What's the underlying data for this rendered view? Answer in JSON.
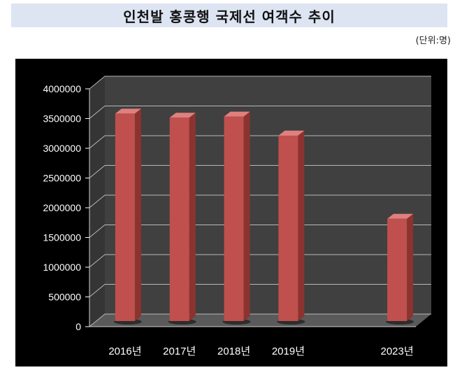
{
  "title": "인천발 홍콩행 국제선 여객수 추이",
  "unit_note": "(단위:명)",
  "colors": {
    "background": "#000000",
    "plot_back_wall": "#404040",
    "plot_floor": "#5a5a5a",
    "gridline": "#b8b8b8",
    "bar_front": "#c0504d",
    "bar_side": "#8c3330",
    "bar_top": "#e0807d",
    "axis_text": "#ffffff",
    "title_bar": "#dde4f2"
  },
  "chart_data": {
    "type": "bar",
    "title": "인천발 홍콩행 국제선 여객수 추이",
    "categories": [
      "2016년",
      "2017년",
      "2018년",
      "2019년",
      "",
      "2023년"
    ],
    "values": [
      3490000,
      3420000,
      3440000,
      3120000,
      null,
      1720000
    ],
    "ylim": [
      0,
      4000000
    ],
    "yticks": [
      "0",
      "500000",
      "1000000",
      "1500000",
      "2000000",
      "2500000",
      "3000000",
      "3500000",
      "4000000"
    ],
    "ytick_values": [
      0,
      500000,
      1000000,
      1500000,
      2000000,
      2500000,
      3000000,
      3500000,
      4000000
    ],
    "grid": true,
    "legend": "none",
    "style": "3d-column"
  }
}
